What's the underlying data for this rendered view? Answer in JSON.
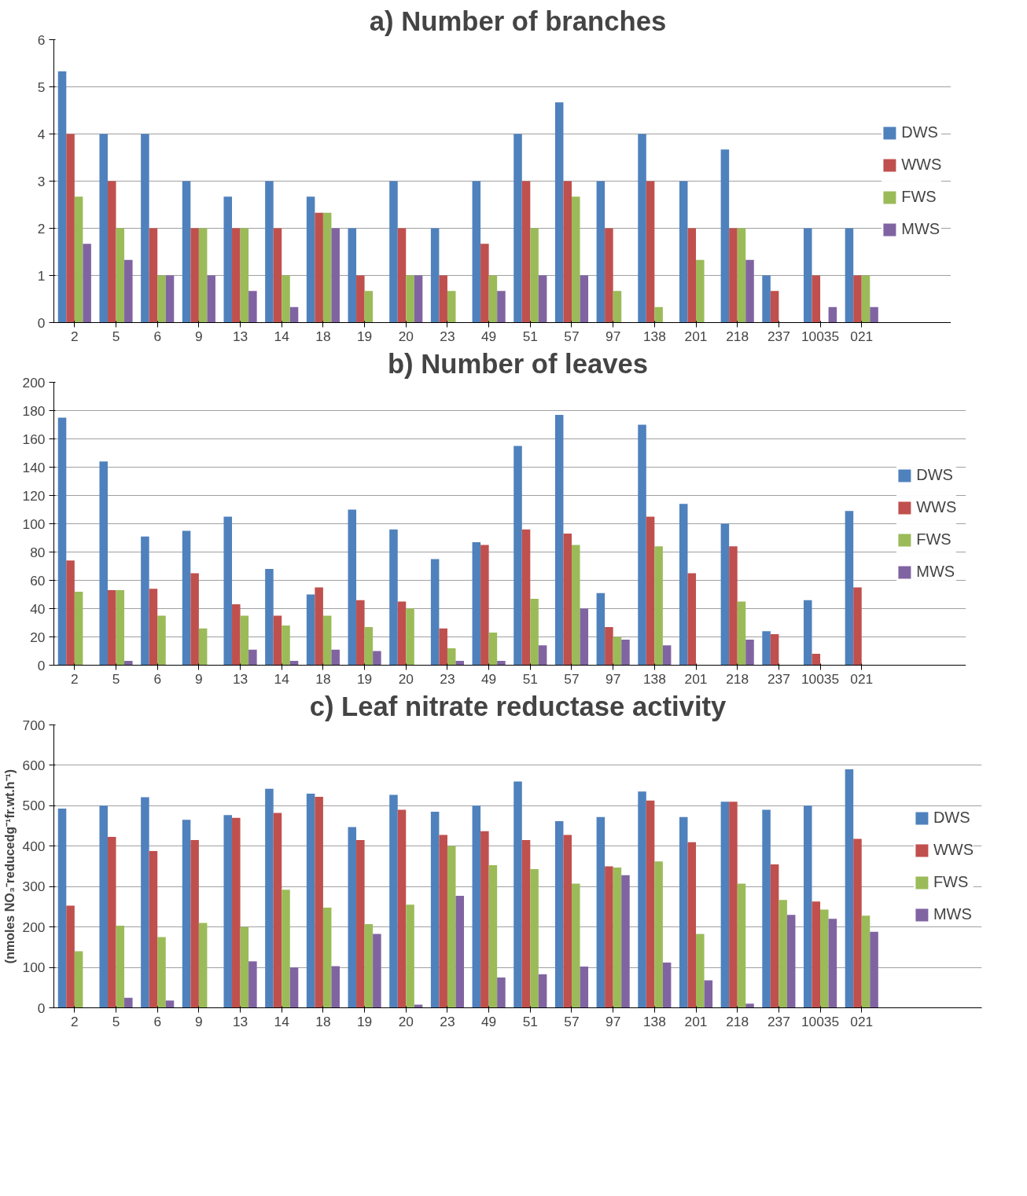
{
  "chart_data": [
    {
      "type": "bar",
      "title": "a) Number of branches",
      "categories": [
        "2",
        "5",
        "6",
        "9",
        "13",
        "14",
        "18",
        "19",
        "20",
        "23",
        "49",
        "51",
        "57",
        "97",
        "138",
        "201",
        "218",
        "237",
        "10035",
        "021"
      ],
      "ylim": [
        0,
        6
      ],
      "yticks": [
        0,
        1,
        2,
        3,
        4,
        5,
        6
      ],
      "grid": "y",
      "legend": "right",
      "series": [
        {
          "name": "DWS",
          "color": "#4f81bd",
          "values": [
            5.33,
            4,
            4,
            3,
            2.67,
            3,
            2.67,
            2,
            3,
            2,
            3,
            4,
            4.67,
            3,
            4,
            3,
            3.67,
            1,
            2,
            2
          ]
        },
        {
          "name": "WWS",
          "color": "#c0504d",
          "values": [
            4,
            3,
            2,
            2,
            2,
            2,
            2.33,
            1,
            2,
            1,
            1.67,
            3,
            3,
            2,
            3,
            2,
            2,
            0.67,
            1,
            1
          ]
        },
        {
          "name": "FWS",
          "color": "#9bbb59",
          "values": [
            2.67,
            2,
            1,
            2,
            2,
            1,
            2.33,
            0.67,
            1,
            0.67,
            1,
            2,
            2.67,
            0.67,
            0.33,
            1.33,
            2,
            0,
            0,
            1
          ]
        },
        {
          "name": "MWS",
          "color": "#8064a2",
          "values": [
            1.67,
            1.33,
            1,
            1,
            0.67,
            0.33,
            2,
            0,
            1,
            0,
            0.67,
            1,
            1,
            0,
            0,
            0,
            1.33,
            0,
            0.33,
            0.33
          ]
        }
      ]
    },
    {
      "type": "bar",
      "title": "b) Number of leaves",
      "categories": [
        "2",
        "5",
        "6",
        "9",
        "13",
        "14",
        "18",
        "19",
        "20",
        "23",
        "49",
        "51",
        "57",
        "97",
        "138",
        "201",
        "218",
        "237",
        "10035",
        "021"
      ],
      "ylim": [
        0,
        200
      ],
      "yticks": [
        0,
        20,
        40,
        60,
        80,
        100,
        120,
        140,
        160,
        180,
        200
      ],
      "grid": "y",
      "legend": "right",
      "series": [
        {
          "name": "DWS",
          "color": "#4f81bd",
          "values": [
            175,
            144,
            91,
            95,
            105,
            68,
            50,
            110,
            96,
            75,
            87,
            155,
            177,
            51,
            170,
            114,
            100,
            24,
            46,
            109
          ]
        },
        {
          "name": "WWS",
          "color": "#c0504d",
          "values": [
            74,
            53,
            54,
            65,
            43,
            35,
            55,
            46,
            45,
            26,
            85,
            96,
            93,
            27,
            105,
            65,
            84,
            22,
            8,
            55
          ]
        },
        {
          "name": "FWS",
          "color": "#9bbb59",
          "values": [
            52,
            53,
            35,
            26,
            35,
            28,
            35,
            27,
            40,
            12,
            23,
            47,
            85,
            20,
            84,
            0,
            45,
            0,
            0,
            0
          ]
        },
        {
          "name": "MWS",
          "color": "#8064a2",
          "values": [
            0,
            3,
            0,
            0,
            11,
            3,
            11,
            10,
            0,
            3,
            3,
            14,
            40,
            18,
            14,
            0,
            18,
            0,
            0,
            0
          ]
        }
      ]
    },
    {
      "type": "bar",
      "title": "c) Leaf nitrate reductase activity",
      "ylabel": "(nmoles NO₃⁻reducedg⁻¹fr.wt.h⁻¹)",
      "categories": [
        "2",
        "5",
        "6",
        "9",
        "13",
        "14",
        "18",
        "19",
        "20",
        "23",
        "49",
        "51",
        "57",
        "97",
        "138",
        "201",
        "218",
        "237",
        "10035",
        "021"
      ],
      "ylim": [
        0,
        700
      ],
      "yticks": [
        0,
        100,
        200,
        300,
        400,
        500,
        600,
        700
      ],
      "grid": "y",
      "legend": "right",
      "series": [
        {
          "name": "DWS",
          "color": "#4f81bd",
          "values": [
            493,
            500,
            521,
            465,
            477,
            542,
            530,
            447,
            527,
            485,
            500,
            560,
            462,
            472,
            535,
            472,
            510,
            490,
            500,
            590
          ]
        },
        {
          "name": "WWS",
          "color": "#c0504d",
          "values": [
            253,
            423,
            388,
            415,
            470,
            482,
            522,
            415,
            490,
            428,
            437,
            415,
            428,
            350,
            513,
            410,
            510,
            355,
            263,
            418
          ]
        },
        {
          "name": "FWS",
          "color": "#9bbb59",
          "values": [
            140,
            203,
            175,
            210,
            200,
            292,
            248,
            207,
            255,
            400,
            353,
            343,
            307,
            347,
            362,
            183,
            307,
            267,
            243,
            228
          ]
        },
        {
          "name": "MWS",
          "color": "#8064a2",
          "values": [
            0,
            25,
            18,
            0,
            115,
            100,
            103,
            183,
            8,
            277,
            75,
            83,
            102,
            328,
            112,
            68,
            10,
            230,
            220,
            188
          ]
        }
      ]
    }
  ]
}
